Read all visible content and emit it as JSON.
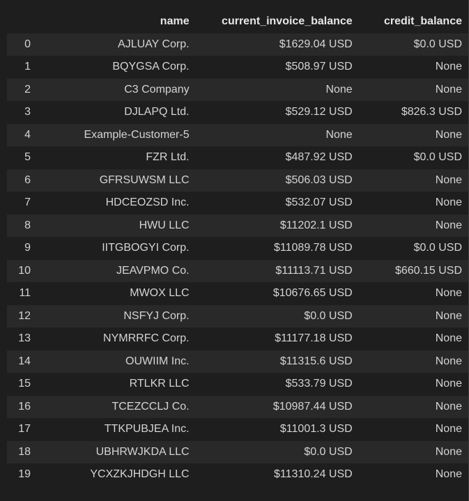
{
  "table": {
    "columns": [
      "",
      "name",
      "current_invoice_balance",
      "credit_balance"
    ],
    "rows": [
      [
        "0",
        "AJLUAY Corp.",
        "$1629.04 USD",
        "$0.0 USD"
      ],
      [
        "1",
        "BQYGSA Corp.",
        "$508.97 USD",
        "None"
      ],
      [
        "2",
        "C3 Company",
        "None",
        "None"
      ],
      [
        "3",
        "DJLAPQ Ltd.",
        "$529.12 USD",
        "$826.3 USD"
      ],
      [
        "4",
        "Example-Customer-5",
        "None",
        "None"
      ],
      [
        "5",
        "FZR Ltd.",
        "$487.92 USD",
        "$0.0 USD"
      ],
      [
        "6",
        "GFRSUWSM LLC",
        "$506.03 USD",
        "None"
      ],
      [
        "7",
        "HDCEOZSD Inc.",
        "$532.07 USD",
        "None"
      ],
      [
        "8",
        "HWU LLC",
        "$11202.1 USD",
        "None"
      ],
      [
        "9",
        "IITGBOGYI Corp.",
        "$11089.78 USD",
        "$0.0 USD"
      ],
      [
        "10",
        "JEAVPMO Co.",
        "$11113.71 USD",
        "$660.15 USD"
      ],
      [
        "11",
        "MWOX LLC",
        "$10676.65 USD",
        "None"
      ],
      [
        "12",
        "NSFYJ Corp.",
        "$0.0 USD",
        "None"
      ],
      [
        "13",
        "NYMRRFC Corp.",
        "$11177.18 USD",
        "None"
      ],
      [
        "14",
        "OUWIIM Inc.",
        "$11315.6 USD",
        "None"
      ],
      [
        "15",
        "RTLKR LLC",
        "$533.79 USD",
        "None"
      ],
      [
        "16",
        "TCEZCCLJ Co.",
        "$10987.44 USD",
        "None"
      ],
      [
        "17",
        "TTKPUBJEA Inc.",
        "$11001.3 USD",
        "None"
      ],
      [
        "18",
        "UBHRWJKDA LLC",
        "$0.0 USD",
        "None"
      ],
      [
        "19",
        "YCXZKJHDGH LLC",
        "$11310.24 USD",
        "None"
      ]
    ]
  },
  "colors": {
    "background": "#1e1e1e",
    "row_stripe": "#292929",
    "text": "#d4d4d4",
    "header_text": "#e6e6e6"
  }
}
